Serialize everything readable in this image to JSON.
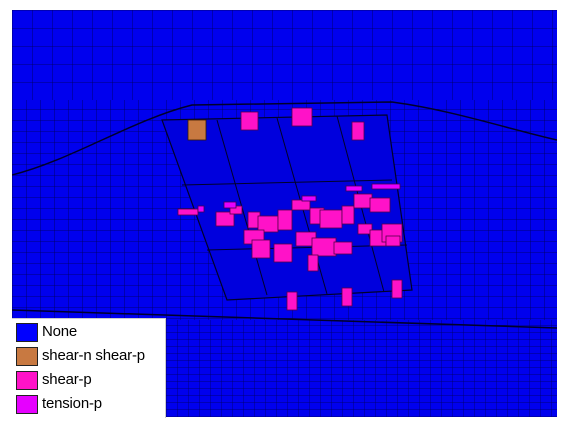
{
  "legend": {
    "items": [
      {
        "label": "None",
        "color": "#0000ff"
      },
      {
        "label": "shear-n shear-p",
        "color": "#c87941"
      },
      {
        "label": "shear-p",
        "color": "#ff12c8"
      },
      {
        "label": "tension-p",
        "color": "#e600ff"
      }
    ]
  },
  "colors": {
    "mesh_fill": "#0000ee",
    "mesh_lines": "#000055",
    "background": "#ffffff"
  }
}
